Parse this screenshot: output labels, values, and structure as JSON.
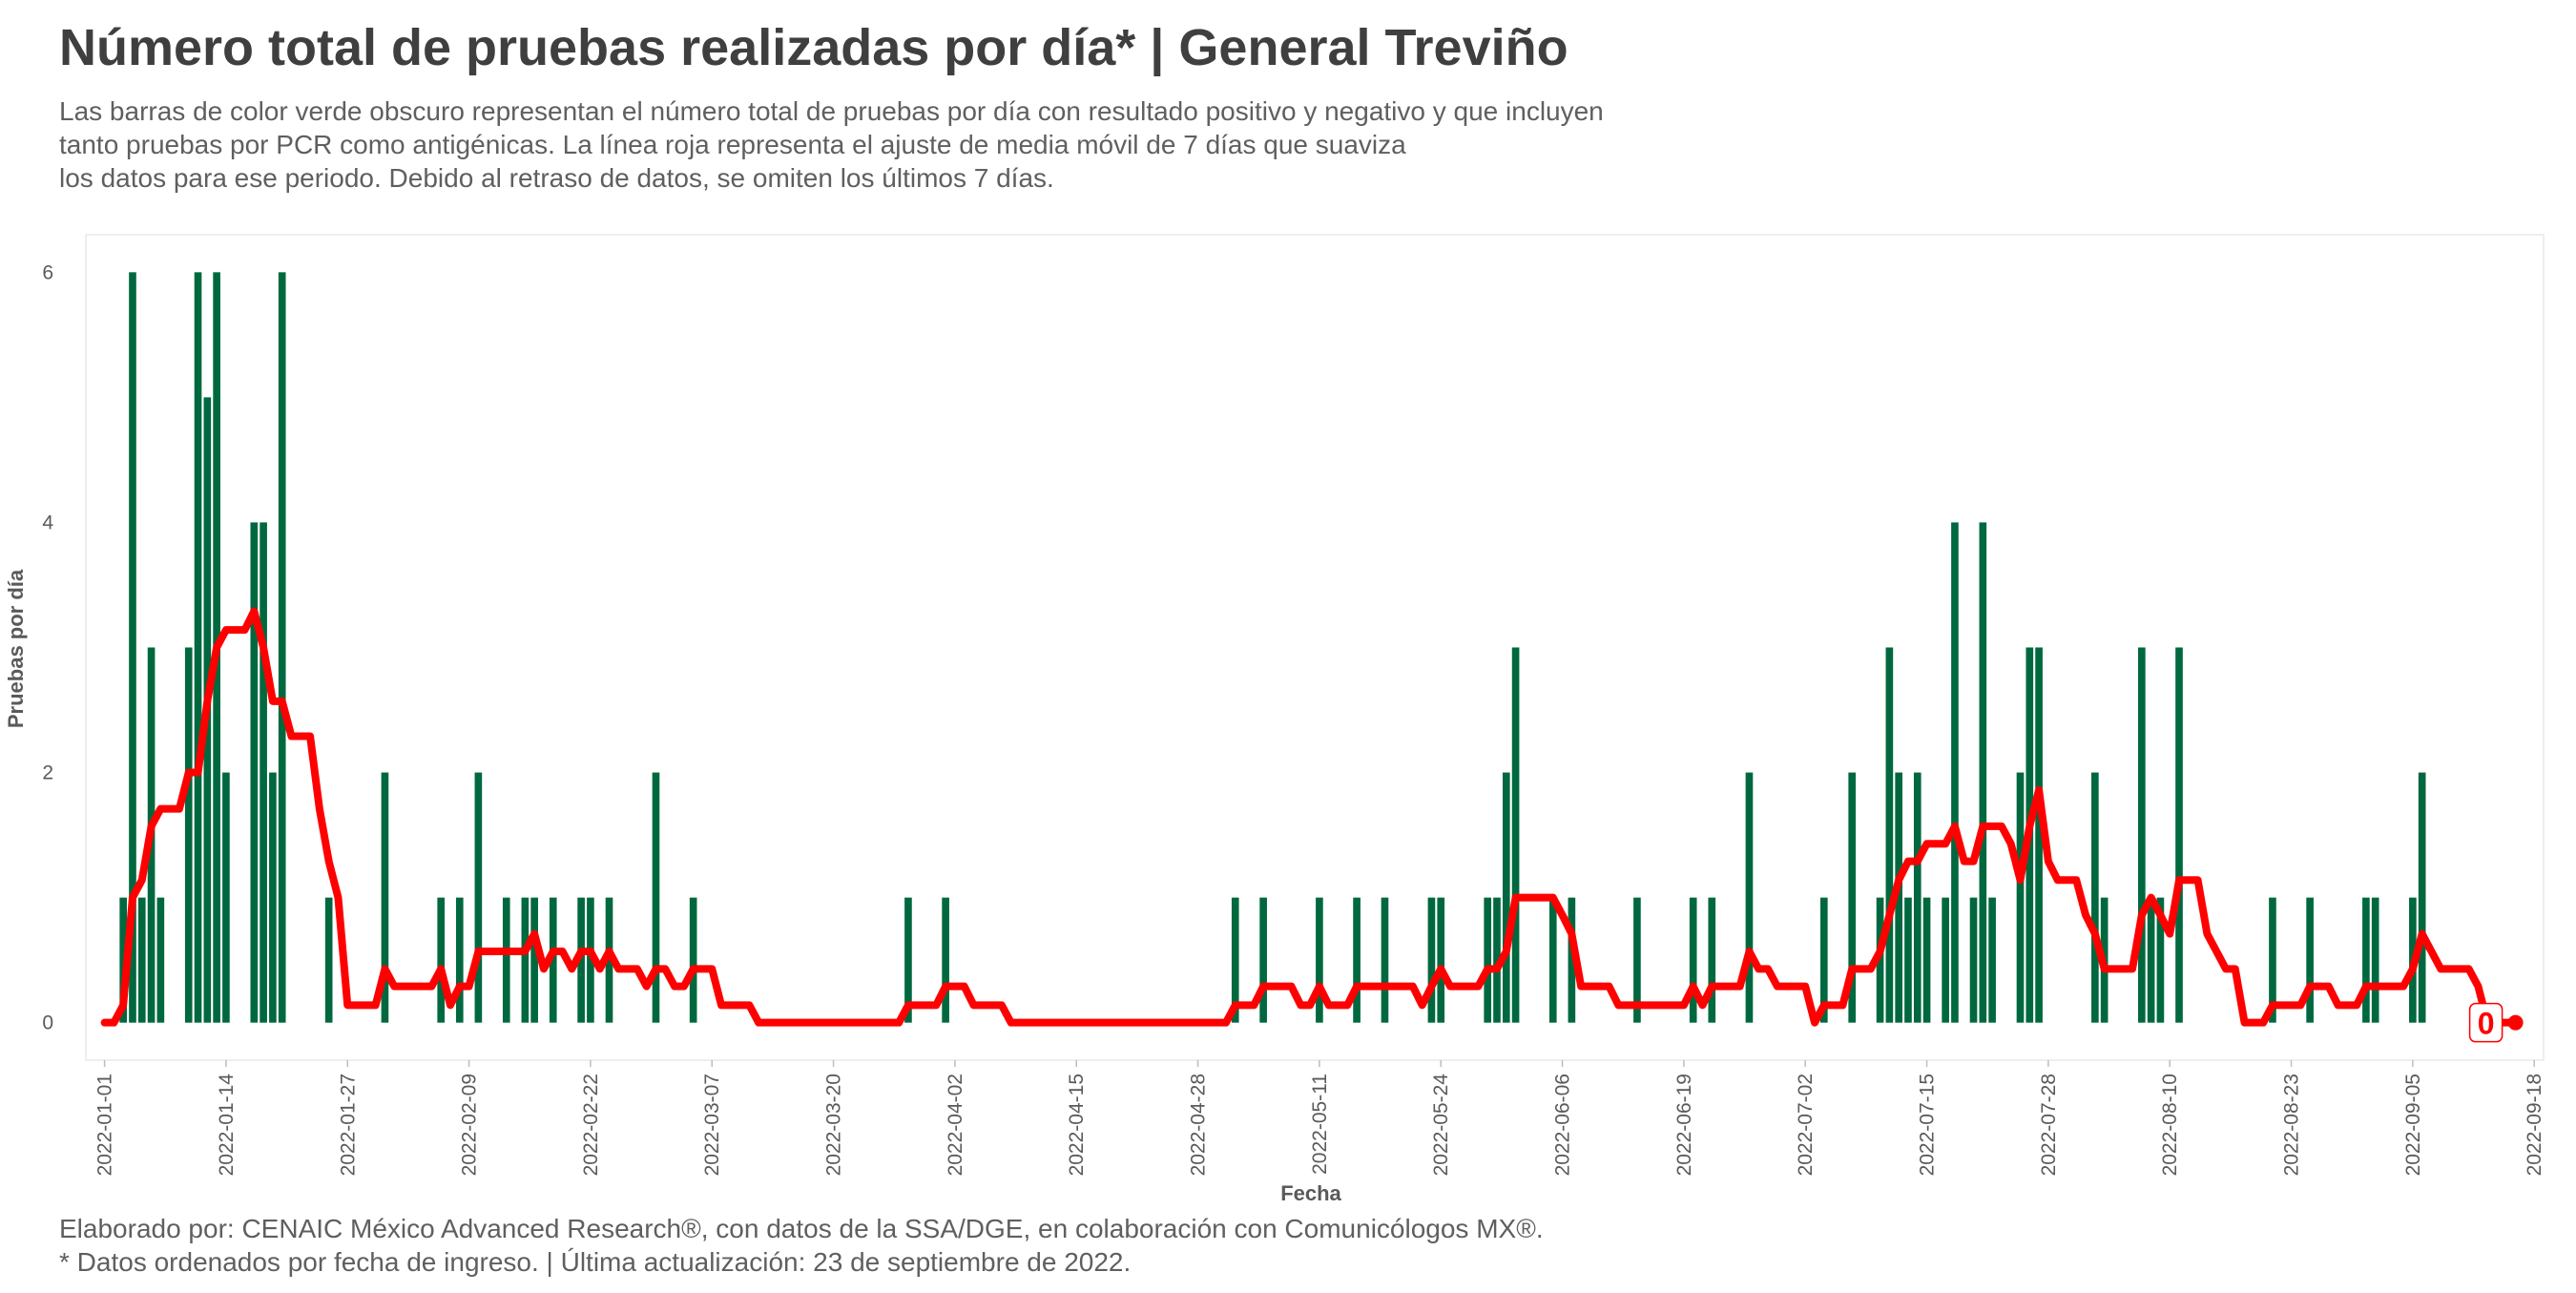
{
  "chart_data": {
    "type": "bar",
    "title": "Número total de pruebas realizadas por día* | General Treviño",
    "subtitle": [
      "Las barras de color verde obscuro representan el número total de pruebas por día con resultado positivo y negativo y que incluyen",
      "tanto pruebas por PCR como antigénicas. La línea roja representa el ajuste de media móvil de 7 días que suaviza",
      "los datos para ese periodo. Debido al retraso de datos, se omiten los últimos 7 días."
    ],
    "x_label": "Fecha",
    "y_label": "Pruebas por día",
    "footer": [
      "Elaborado por: CENAIC México Advanced Research®, con datos de la SSA/DGE, en colaboración con Comunicólogos MX®.",
      "* Datos ordenados por fecha de ingreso. | Última actualización: 23 de septiembre de 2022."
    ],
    "x": [
      "2022-01-01",
      "2022-01-02",
      "2022-01-03",
      "2022-01-04",
      "2022-01-05",
      "2022-01-06",
      "2022-01-07",
      "2022-01-08",
      "2022-01-09",
      "2022-01-10",
      "2022-01-11",
      "2022-01-12",
      "2022-01-13",
      "2022-01-14",
      "2022-01-15",
      "2022-01-16",
      "2022-01-17",
      "2022-01-18",
      "2022-01-19",
      "2022-01-20",
      "2022-01-21",
      "2022-01-22",
      "2022-01-23",
      "2022-01-24",
      "2022-01-25",
      "2022-01-26",
      "2022-01-27",
      "2022-01-28",
      "2022-01-29",
      "2022-01-30",
      "2022-01-31",
      "2022-02-01",
      "2022-02-02",
      "2022-02-03",
      "2022-02-04",
      "2022-02-05",
      "2022-02-06",
      "2022-02-07",
      "2022-02-08",
      "2022-02-09",
      "2022-02-10",
      "2022-02-11",
      "2022-02-12",
      "2022-02-13",
      "2022-02-14",
      "2022-02-15",
      "2022-02-16",
      "2022-02-17",
      "2022-02-18",
      "2022-02-19",
      "2022-02-20",
      "2022-02-21",
      "2022-02-22",
      "2022-02-23",
      "2022-02-24",
      "2022-02-25",
      "2022-02-26",
      "2022-02-27",
      "2022-02-28",
      "2022-03-01",
      "2022-03-02",
      "2022-03-03",
      "2022-03-04",
      "2022-03-05",
      "2022-03-06",
      "2022-03-07",
      "2022-03-08",
      "2022-03-09",
      "2022-03-10",
      "2022-03-11",
      "2022-03-12",
      "2022-03-13",
      "2022-03-14",
      "2022-03-15",
      "2022-03-16",
      "2022-03-17",
      "2022-03-18",
      "2022-03-19",
      "2022-03-20",
      "2022-03-21",
      "2022-03-22",
      "2022-03-23",
      "2022-03-24",
      "2022-03-25",
      "2022-03-26",
      "2022-03-27",
      "2022-03-28",
      "2022-03-29",
      "2022-03-30",
      "2022-03-31",
      "2022-04-01",
      "2022-04-02",
      "2022-04-03",
      "2022-04-04",
      "2022-04-05",
      "2022-04-06",
      "2022-04-07",
      "2022-04-08",
      "2022-04-09",
      "2022-04-10",
      "2022-04-11",
      "2022-04-12",
      "2022-04-13",
      "2022-04-14",
      "2022-04-15",
      "2022-04-16",
      "2022-04-17",
      "2022-04-18",
      "2022-04-19",
      "2022-04-20",
      "2022-04-21",
      "2022-04-22",
      "2022-04-23",
      "2022-04-24",
      "2022-04-25",
      "2022-04-26",
      "2022-04-27",
      "2022-04-28",
      "2022-04-29",
      "2022-04-30",
      "2022-05-01",
      "2022-05-02",
      "2022-05-03",
      "2022-05-04",
      "2022-05-05",
      "2022-05-06",
      "2022-05-07",
      "2022-05-08",
      "2022-05-09",
      "2022-05-10",
      "2022-05-11",
      "2022-05-12",
      "2022-05-13",
      "2022-05-14",
      "2022-05-15",
      "2022-05-16",
      "2022-05-17",
      "2022-05-18",
      "2022-05-19",
      "2022-05-20",
      "2022-05-21",
      "2022-05-22",
      "2022-05-23",
      "2022-05-24",
      "2022-05-25",
      "2022-05-26",
      "2022-05-27",
      "2022-05-28",
      "2022-05-29",
      "2022-05-30",
      "2022-05-31",
      "2022-06-01",
      "2022-06-02",
      "2022-06-03",
      "2022-06-04",
      "2022-06-05",
      "2022-06-06",
      "2022-06-07",
      "2022-06-08",
      "2022-06-09",
      "2022-06-10",
      "2022-06-11",
      "2022-06-12",
      "2022-06-13",
      "2022-06-14",
      "2022-06-15",
      "2022-06-16",
      "2022-06-17",
      "2022-06-18",
      "2022-06-19",
      "2022-06-20",
      "2022-06-21",
      "2022-06-22",
      "2022-06-23",
      "2022-06-24",
      "2022-06-25",
      "2022-06-26",
      "2022-06-27",
      "2022-06-28",
      "2022-06-29",
      "2022-06-30",
      "2022-07-01",
      "2022-07-02",
      "2022-07-03",
      "2022-07-04",
      "2022-07-05",
      "2022-07-06",
      "2022-07-07",
      "2022-07-08",
      "2022-07-09",
      "2022-07-10",
      "2022-07-11",
      "2022-07-12",
      "2022-07-13",
      "2022-07-14",
      "2022-07-15",
      "2022-07-16",
      "2022-07-17",
      "2022-07-18",
      "2022-07-19",
      "2022-07-20",
      "2022-07-21",
      "2022-07-22",
      "2022-07-23",
      "2022-07-24",
      "2022-07-25",
      "2022-07-26",
      "2022-07-27",
      "2022-07-28",
      "2022-07-29",
      "2022-07-30",
      "2022-07-31",
      "2022-08-01",
      "2022-08-02",
      "2022-08-03",
      "2022-08-04",
      "2022-08-05",
      "2022-08-06",
      "2022-08-07",
      "2022-08-08",
      "2022-08-09",
      "2022-08-10",
      "2022-08-11",
      "2022-08-12",
      "2022-08-13",
      "2022-08-14",
      "2022-08-15",
      "2022-08-16",
      "2022-08-17",
      "2022-08-18",
      "2022-08-19",
      "2022-08-20",
      "2022-08-21",
      "2022-08-22",
      "2022-08-23",
      "2022-08-24",
      "2022-08-25",
      "2022-08-26",
      "2022-08-27",
      "2022-08-28",
      "2022-08-29",
      "2022-08-30",
      "2022-08-31",
      "2022-09-01",
      "2022-09-02",
      "2022-09-03",
      "2022-09-04",
      "2022-09-05",
      "2022-09-06",
      "2022-09-07",
      "2022-09-08",
      "2022-09-09",
      "2022-09-10",
      "2022-09-11",
      "2022-09-12",
      "2022-09-13",
      "2022-09-14",
      "2022-09-15",
      "2022-09-16"
    ],
    "series": [
      {
        "type": "bar",
        "color": "#00683f",
        "values": [
          0,
          0,
          1,
          6,
          1,
          3,
          1,
          0,
          0,
          3,
          6,
          5,
          6,
          2,
          0,
          0,
          4,
          4,
          2,
          6,
          0,
          0,
          0,
          0,
          1,
          0,
          0,
          0,
          0,
          0,
          2,
          0,
          0,
          0,
          0,
          0,
          1,
          0,
          1,
          0,
          2,
          0,
          0,
          1,
          0,
          1,
          1,
          0,
          1,
          0,
          0,
          1,
          1,
          0,
          1,
          0,
          0,
          0,
          0,
          2,
          0,
          0,
          0,
          1,
          0,
          0,
          0,
          0,
          0,
          0,
          0,
          0,
          0,
          0,
          0,
          0,
          0,
          0,
          0,
          0,
          0,
          0,
          0,
          0,
          0,
          0,
          1,
          0,
          0,
          0,
          1,
          0,
          0,
          0,
          0,
          0,
          0,
          0,
          0,
          0,
          0,
          0,
          0,
          0,
          0,
          0,
          0,
          0,
          0,
          0,
          0,
          0,
          0,
          0,
          0,
          0,
          0,
          0,
          0,
          0,
          0,
          1,
          0,
          0,
          1,
          0,
          0,
          0,
          0,
          0,
          1,
          0,
          0,
          0,
          1,
          0,
          0,
          1,
          0,
          0,
          0,
          0,
          1,
          1,
          0,
          0,
          0,
          0,
          1,
          1,
          2,
          3,
          0,
          0,
          0,
          1,
          0,
          1,
          0,
          0,
          0,
          0,
          0,
          0,
          1,
          0,
          0,
          0,
          0,
          0,
          1,
          0,
          1,
          0,
          0,
          0,
          2,
          0,
          0,
          0,
          0,
          0,
          0,
          0,
          1,
          0,
          0,
          2,
          0,
          0,
          1,
          3,
          2,
          1,
          2,
          1,
          0,
          1,
          4,
          0,
          1,
          4,
          1,
          0,
          0,
          2,
          3,
          3,
          0,
          0,
          0,
          0,
          0,
          2,
          1,
          0,
          0,
          0,
          3,
          1,
          1,
          0,
          3,
          0,
          0,
          0,
          0,
          0,
          0,
          0,
          0,
          0,
          1,
          0,
          0,
          0,
          1,
          0,
          0,
          0,
          0,
          0,
          1,
          1,
          0,
          0,
          0,
          1,
          2,
          0,
          0,
          0,
          0,
          0,
          0,
          0,
          0,
          0,
          0
        ]
      },
      {
        "type": "line",
        "color": "#ff0000",
        "values": [
          0,
          0,
          0.14,
          1,
          1.14,
          1.57,
          1.71,
          1.71,
          1.71,
          2,
          2,
          2.57,
          3,
          3.14,
          3.14,
          3.14,
          3.29,
          3,
          2.57,
          2.57,
          2.29,
          2.29,
          2.29,
          1.71,
          1.29,
          1,
          0.14,
          0.14,
          0.14,
          0.14,
          0.43,
          0.29,
          0.29,
          0.29,
          0.29,
          0.29,
          0.43,
          0.14,
          0.29,
          0.29,
          0.57,
          0.57,
          0.57,
          0.57,
          0.57,
          0.57,
          0.71,
          0.43,
          0.57,
          0.57,
          0.43,
          0.57,
          0.57,
          0.43,
          0.57,
          0.43,
          0.43,
          0.43,
          0.29,
          0.43,
          0.43,
          0.29,
          0.29,
          0.43,
          0.43,
          0.43,
          0.14,
          0.14,
          0.14,
          0.14,
          0,
          0,
          0,
          0,
          0,
          0,
          0,
          0,
          0,
          0,
          0,
          0,
          0,
          0,
          0,
          0,
          0.14,
          0.14,
          0.14,
          0.14,
          0.29,
          0.29,
          0.29,
          0.14,
          0.14,
          0.14,
          0.14,
          0,
          0,
          0,
          0,
          0,
          0,
          0,
          0,
          0,
          0,
          0,
          0,
          0,
          0,
          0,
          0,
          0,
          0,
          0,
          0,
          0,
          0,
          0,
          0,
          0.14,
          0.14,
          0.14,
          0.29,
          0.29,
          0.29,
          0.29,
          0.14,
          0.14,
          0.29,
          0.14,
          0.14,
          0.14,
          0.29,
          0.29,
          0.29,
          0.29,
          0.29,
          0.29,
          0.29,
          0.14,
          0.29,
          0.43,
          0.29,
          0.29,
          0.29,
          0.29,
          0.43,
          0.43,
          0.57,
          1,
          1,
          1,
          1,
          1,
          0.86,
          0.71,
          0.29,
          0.29,
          0.29,
          0.29,
          0.14,
          0.14,
          0.14,
          0.14,
          0.14,
          0.14,
          0.14,
          0.14,
          0.29,
          0.14,
          0.29,
          0.29,
          0.29,
          0.29,
          0.57,
          0.43,
          0.43,
          0.29,
          0.29,
          0.29,
          0.29,
          0,
          0.14,
          0.14,
          0.14,
          0.43,
          0.43,
          0.43,
          0.57,
          0.86,
          1.14,
          1.29,
          1.29,
          1.43,
          1.43,
          1.43,
          1.57,
          1.29,
          1.29,
          1.57,
          1.57,
          1.57,
          1.43,
          1.14,
          1.57,
          1.86,
          1.29,
          1.14,
          1.14,
          1.14,
          0.86,
          0.71,
          0.43,
          0.43,
          0.43,
          0.43,
          0.86,
          1,
          0.86,
          0.71,
          1.14,
          1.14,
          1.14,
          0.71,
          0.57,
          0.43,
          0.43,
          0,
          0,
          0,
          0.14,
          0.14,
          0.14,
          0.14,
          0.29,
          0.29,
          0.29,
          0.14,
          0.14,
          0.14,
          0.29,
          0.29,
          0.29,
          0.29,
          0.29,
          0.43,
          0.71,
          0.57,
          0.43,
          0.43,
          0.43,
          0.43,
          0.29,
          0,
          0,
          0,
          0
        ]
      }
    ],
    "xlim": [
      "2021-12-30",
      "2022-09-19"
    ],
    "xticks": [
      "2022-01-01",
      "2022-01-14",
      "2022-01-27",
      "2022-02-09",
      "2022-02-22",
      "2022-03-07",
      "2022-03-20",
      "2022-04-02",
      "2022-04-15",
      "2022-04-28",
      "2022-05-11",
      "2022-05-24",
      "2022-06-06",
      "2022-06-19",
      "2022-07-02",
      "2022-07-15",
      "2022-07-28",
      "2022-08-10",
      "2022-08-23",
      "2022-09-05",
      "2022-09-18"
    ],
    "ylim": [
      -0.3,
      6.3
    ],
    "yticks": [
      0,
      2,
      4,
      6
    ],
    "grid": false
  }
}
